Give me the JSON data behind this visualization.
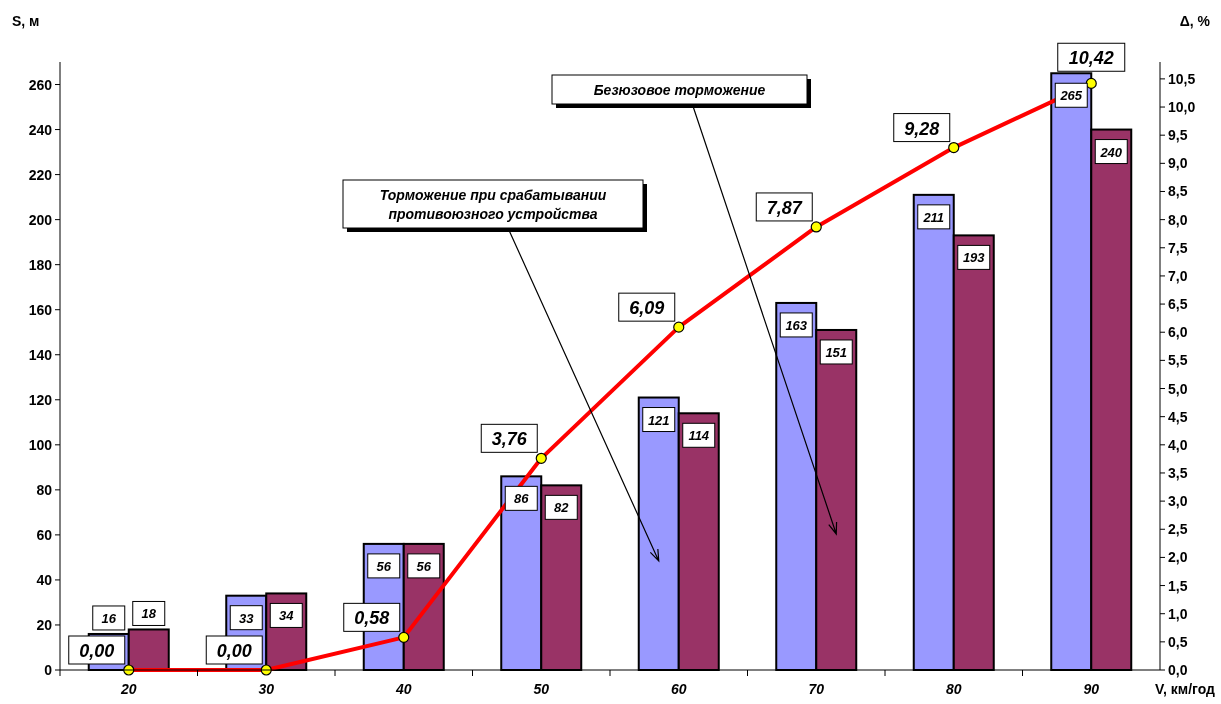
{
  "chart_data": {
    "type": "bar",
    "categories": [
      "20",
      "30",
      "40",
      "50",
      "60",
      "70",
      "80",
      "90"
    ],
    "xlabel": "V, км/год",
    "ylabel": "S, м",
    "y2label": "Δ, %",
    "ylim": [
      0,
      270
    ],
    "yticks": [
      0,
      20,
      40,
      60,
      80,
      100,
      120,
      140,
      160,
      180,
      200,
      220,
      240,
      260
    ],
    "y2lim": [
      0,
      10.8
    ],
    "y2ticks": [
      {
        "value": 0,
        "label": "0,0"
      },
      {
        "value": 0.5,
        "label": "0,5"
      },
      {
        "value": 1,
        "label": "1,0"
      },
      {
        "value": 1.5,
        "label": "1,5"
      },
      {
        "value": 2,
        "label": "2,0"
      },
      {
        "value": 2.5,
        "label": "2,5"
      },
      {
        "value": 3,
        "label": "3,0"
      },
      {
        "value": 3.5,
        "label": "3,5"
      },
      {
        "value": 4,
        "label": "4,0"
      },
      {
        "value": 4.5,
        "label": "4,5"
      },
      {
        "value": 5,
        "label": "5,0"
      },
      {
        "value": 5.5,
        "label": "5,5"
      },
      {
        "value": 6,
        "label": "6,0"
      },
      {
        "value": 6.5,
        "label": "6,5"
      },
      {
        "value": 7,
        "label": "7,0"
      },
      {
        "value": 7.5,
        "label": "7,5"
      },
      {
        "value": 8,
        "label": "8,0"
      },
      {
        "value": 8.5,
        "label": "8,5"
      },
      {
        "value": 9,
        "label": "9,0"
      },
      {
        "value": 9.5,
        "label": "9,5"
      },
      {
        "value": 10,
        "label": "10,0"
      },
      {
        "value": 10.5,
        "label": "10,5"
      }
    ],
    "series": [
      {
        "name": "Торможение при срабатывании противоюзного устройства",
        "color": "#9999ff",
        "values": [
          16,
          33,
          56,
          86,
          121,
          163,
          211,
          265
        ],
        "value_labels": [
          "16",
          "33",
          "56",
          "86",
          "121",
          "163",
          "211",
          "265"
        ]
      },
      {
        "name": "Безюзовое торможение",
        "color": "#993366",
        "values": [
          18,
          34,
          56,
          82,
          114,
          151,
          193,
          240
        ],
        "value_labels": [
          "18",
          "34",
          "56",
          "82",
          "114",
          "151",
          "193",
          "240"
        ]
      },
      {
        "type": "line",
        "axis": "y2",
        "color": "#ff0000",
        "marker": "circle",
        "values": [
          0,
          0,
          0.58,
          3.76,
          6.09,
          7.87,
          9.28,
          10.42
        ],
        "value_labels": [
          "0,00",
          "0,00",
          "0,58",
          "3,76",
          "6,09",
          "7,87",
          "9,28",
          "10,42"
        ]
      }
    ],
    "grid": false,
    "legend": false
  }
}
